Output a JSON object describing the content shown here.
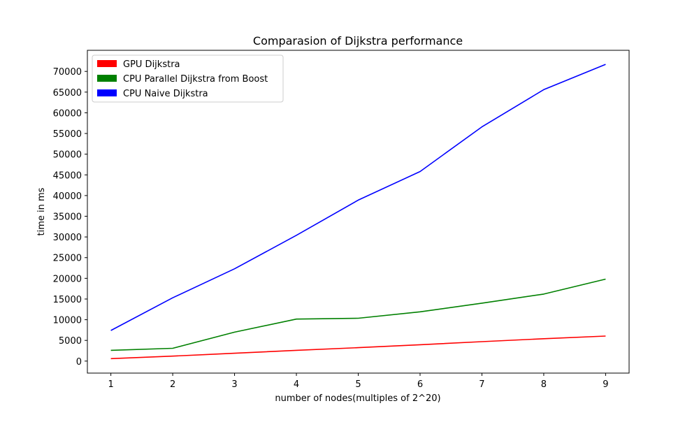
{
  "chart_data": {
    "type": "line",
    "title": "Comparasion of Dijkstra performance",
    "xlabel": "number of nodes(multiples of 2^20)",
    "ylabel": "time in ms",
    "x": [
      1,
      2,
      3,
      4,
      5,
      6,
      7,
      8,
      9
    ],
    "xlim": [
      0.62,
      9.38
    ],
    "ylim": [
      -2900,
      75100
    ],
    "xticks": [
      1,
      2,
      3,
      4,
      5,
      6,
      7,
      8,
      9
    ],
    "yticks": [
      0,
      5000,
      10000,
      15000,
      20000,
      25000,
      30000,
      35000,
      40000,
      45000,
      50000,
      55000,
      60000,
      65000,
      70000
    ],
    "grid": false,
    "legend_position": "top-left",
    "series": [
      {
        "name": "GPU Dijkstra",
        "color": "#ff0000",
        "values": [
          600,
          1200,
          1900,
          2600,
          3250,
          3950,
          4700,
          5400,
          6050
        ]
      },
      {
        "name": "CPU Parallel Dijkstra from Boost",
        "color": "#008000",
        "values": [
          2600,
          3100,
          7000,
          10150,
          10350,
          11900,
          14000,
          16200,
          19800
        ]
      },
      {
        "name": "CPU Naive Dijkstra",
        "color": "#0000ff",
        "values": [
          7400,
          15300,
          22300,
          30400,
          38900,
          45800,
          56600,
          65600,
          71700
        ]
      }
    ]
  }
}
